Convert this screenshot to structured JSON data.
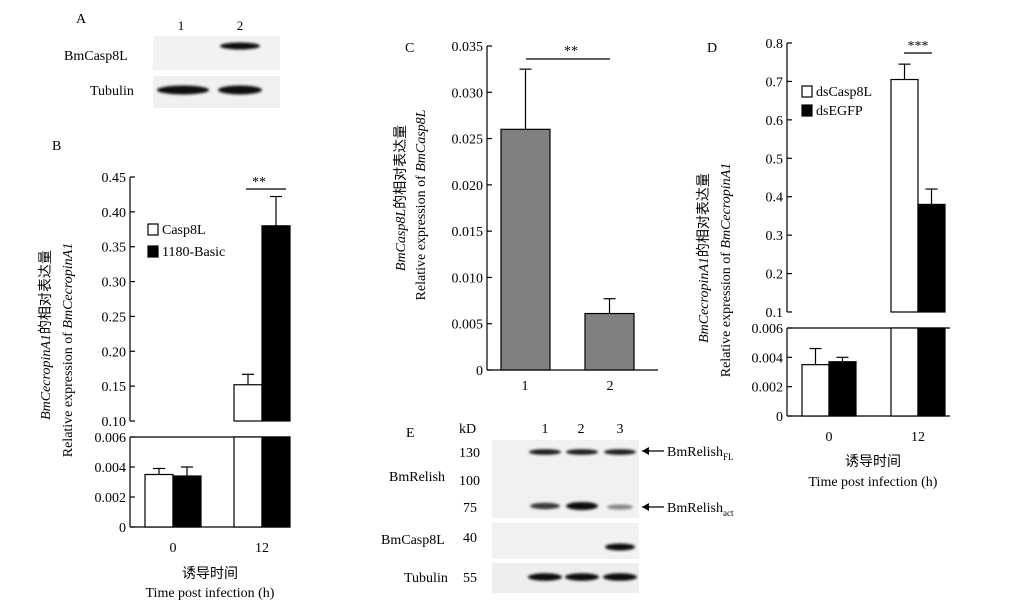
{
  "panels": {
    "A": {
      "letter": "A",
      "lanes": [
        "1",
        "2"
      ],
      "rows": [
        "BmCasp8L",
        "Tubulin"
      ]
    },
    "B": {
      "letter": "B",
      "ylabel_italic": "BmCecropinA1",
      "ylabel_cn": "的相对表达量",
      "ylabel_en_prefix": "Relative expression of ",
      "ylabel_en_italic": "BmCecropinA1",
      "xlabel_cn": "诱导时间",
      "xlabel_en": "Time post infection (h)",
      "significance": "**",
      "upper_ticks": [
        "0.10",
        "0.15",
        "0.20",
        "0.25",
        "0.30",
        "0.35",
        "0.40",
        "0.45"
      ],
      "lower_ticks": [
        "0",
        "0.002",
        "0.004",
        "0.006"
      ]
    },
    "C": {
      "letter": "C",
      "ylabel_italic": "BmCasp8L",
      "ylabel_cn": "的相对表达量",
      "ylabel_en_prefix": "Relative expression of ",
      "ylabel_en_italic": "BmCasp8L",
      "significance": "**",
      "ticks": [
        "0",
        "0.005",
        "0.010",
        "0.015",
        "0.020",
        "0.025",
        "0.030",
        "0.035"
      ]
    },
    "D": {
      "letter": "D",
      "ylabel_italic": "BmCecropinA1",
      "ylabel_cn": "的相对表达量",
      "ylabel_en_prefix": "Relative expression of ",
      "ylabel_en_italic": "BmCecropinA1",
      "xlabel_cn": "诱导时间",
      "xlabel_en": "Time post infection (h)",
      "significance": "***",
      "upper_ticks": [
        "0.1",
        "0.2",
        "0.3",
        "0.4",
        "0.5",
        "0.6",
        "0.7",
        "0.8"
      ],
      "lower_ticks": [
        "0",
        "0.002",
        "0.004",
        "0.006"
      ]
    },
    "E": {
      "letter": "E",
      "unit": "kD",
      "lanes": [
        "1",
        "2",
        "3"
      ],
      "markers": [
        "130",
        "100",
        "75",
        "40",
        "55"
      ],
      "row_labels": [
        "BmRelish",
        "BmCasp8L",
        "Tubulin"
      ],
      "band_fl": "BmRelish",
      "band_fl_sub": "FL",
      "band_act": "BmRelish",
      "band_act_sub": "act"
    }
  },
  "chart_data": [
    {
      "panel": "B",
      "type": "bar",
      "categories": [
        "0",
        "12"
      ],
      "series": [
        {
          "name": "Casp8L",
          "values": [
            0.0035,
            0.152
          ],
          "errors": [
            0.0004,
            0.015
          ],
          "color": "#ffffff"
        },
        {
          "name": "1180-Basic",
          "values": [
            0.0034,
            0.38
          ],
          "errors": [
            0.0006,
            0.042
          ],
          "color": "#000000"
        }
      ],
      "xlabel": "Time post infection (h)",
      "ylabel": "Relative expression of BmCecropinA1",
      "axis_break": true,
      "ylim_lower": [
        0,
        0.006
      ],
      "ylim_upper": [
        0.1,
        0.45
      ],
      "legend": "top-left"
    },
    {
      "panel": "C",
      "type": "bar",
      "categories": [
        "1",
        "2"
      ],
      "series": [
        {
          "values": [
            0.026,
            0.0061
          ],
          "errors": [
            0.0065,
            0.0016
          ],
          "color": "#808080"
        }
      ],
      "xlabel": "",
      "ylabel": "Relative expression of BmCasp8L",
      "ylim": [
        0,
        0.035
      ]
    },
    {
      "panel": "D",
      "type": "bar",
      "categories": [
        "0",
        "12"
      ],
      "series": [
        {
          "name": "dsCasp8L",
          "values": [
            0.0035,
            0.705
          ],
          "errors": [
            0.0011,
            0.04
          ],
          "color": "#ffffff"
        },
        {
          "name": "dsEGFP",
          "values": [
            0.0037,
            0.38
          ],
          "errors": [
            0.0003,
            0.04
          ],
          "color": "#000000"
        }
      ],
      "xlabel": "Time post infection (h)",
      "ylabel": "Relative expression of BmCecropinA1",
      "axis_break": true,
      "ylim_lower": [
        0,
        0.006
      ],
      "ylim_upper": [
        0.1,
        0.8
      ],
      "legend": "top-left"
    }
  ]
}
